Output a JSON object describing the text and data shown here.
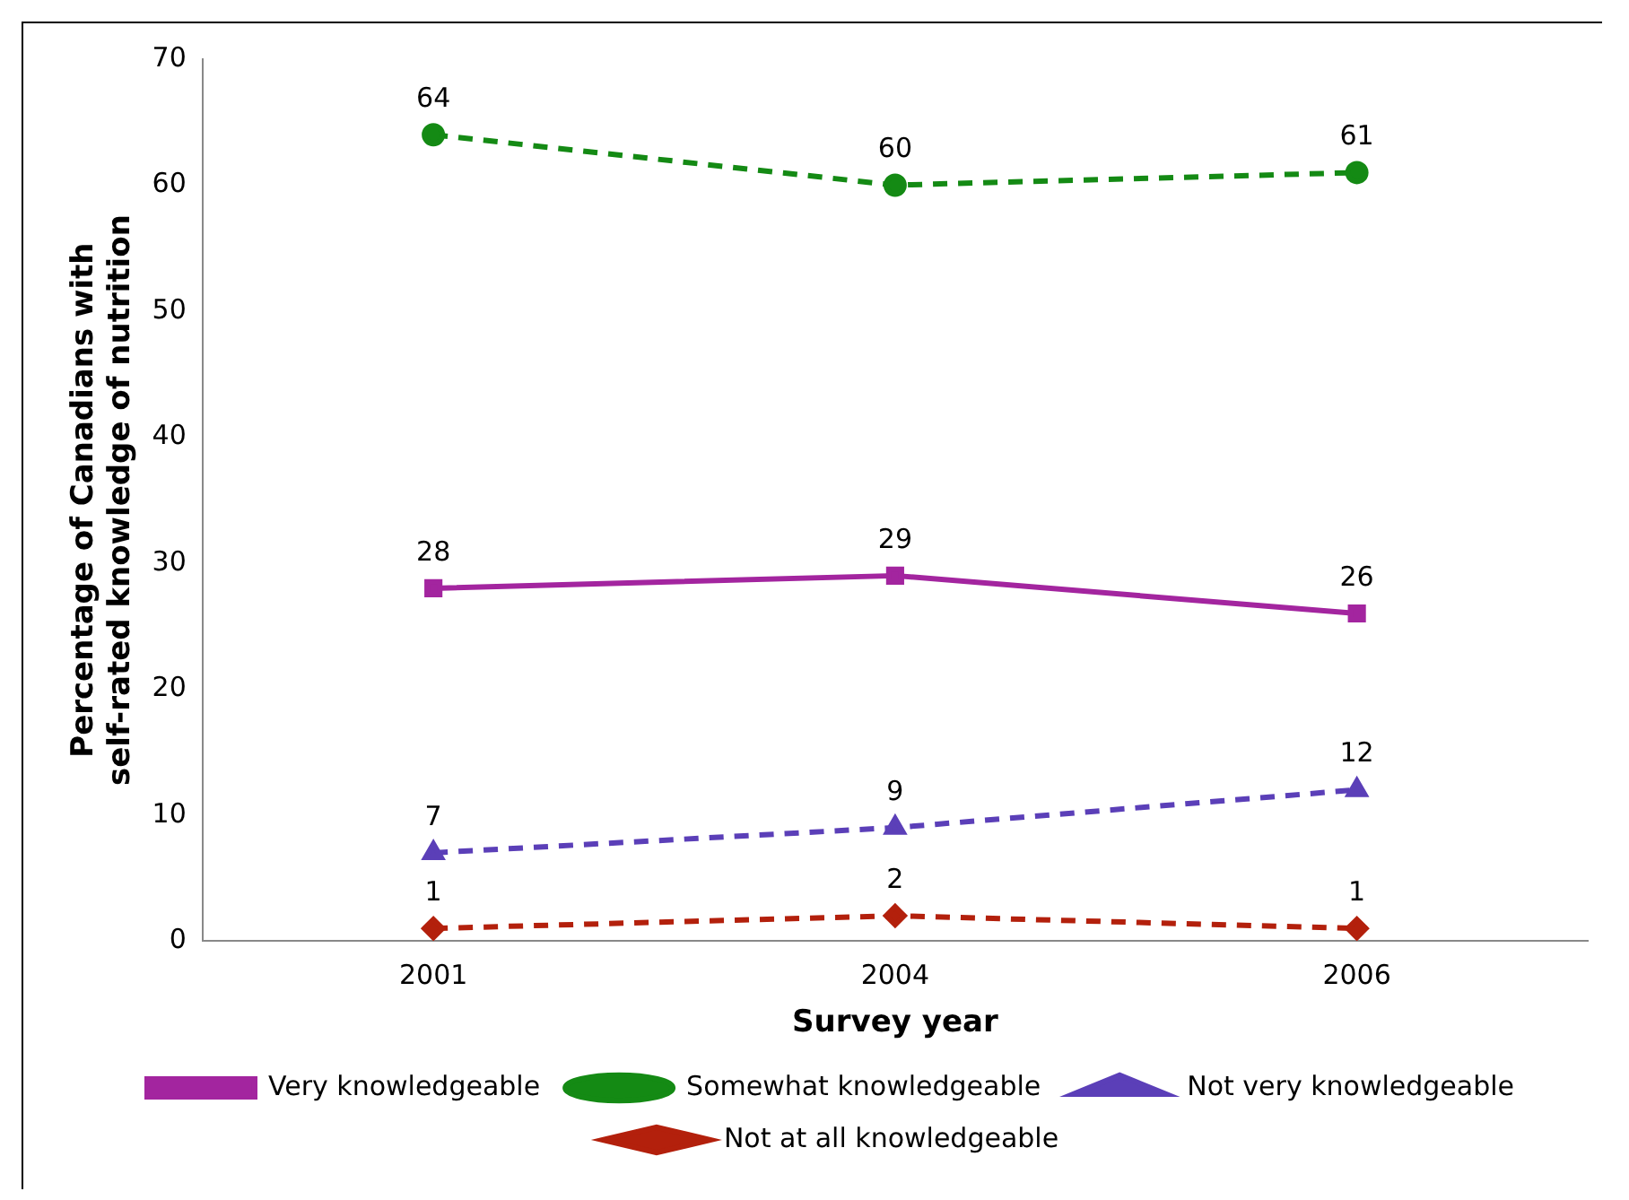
{
  "chart_data": {
    "type": "line",
    "xlabel": "Survey year",
    "ylabel": "Percentage of Canadians with\nself-rated knowledge of nutrition",
    "categories": [
      "2001",
      "2004",
      "2006"
    ],
    "series": [
      {
        "name": "Very knowledgeable",
        "color": "#a3259f",
        "values": [
          28,
          29,
          26
        ],
        "marker": "square",
        "line_style": "solid"
      },
      {
        "name": "Somewhat knowledgeable",
        "color": "#148a14",
        "values": [
          64,
          60,
          61
        ],
        "marker": "circle",
        "line_style": "dashed"
      },
      {
        "name": "Not very knowledgeable",
        "color": "#5b3fb8",
        "values": [
          7,
          9,
          12
        ],
        "marker": "triangle",
        "line_style": "dashed"
      },
      {
        "name": "Not at all knowledgeable",
        "color": "#b3200c",
        "values": [
          1,
          2,
          1
        ],
        "marker": "diamond",
        "line_style": "dashed"
      }
    ],
    "ylim": [
      0,
      70
    ],
    "yticks": [
      0,
      10,
      20,
      30,
      40,
      50,
      60,
      70
    ],
    "grid": false,
    "legend": "bottom",
    "data_labels": true
  }
}
